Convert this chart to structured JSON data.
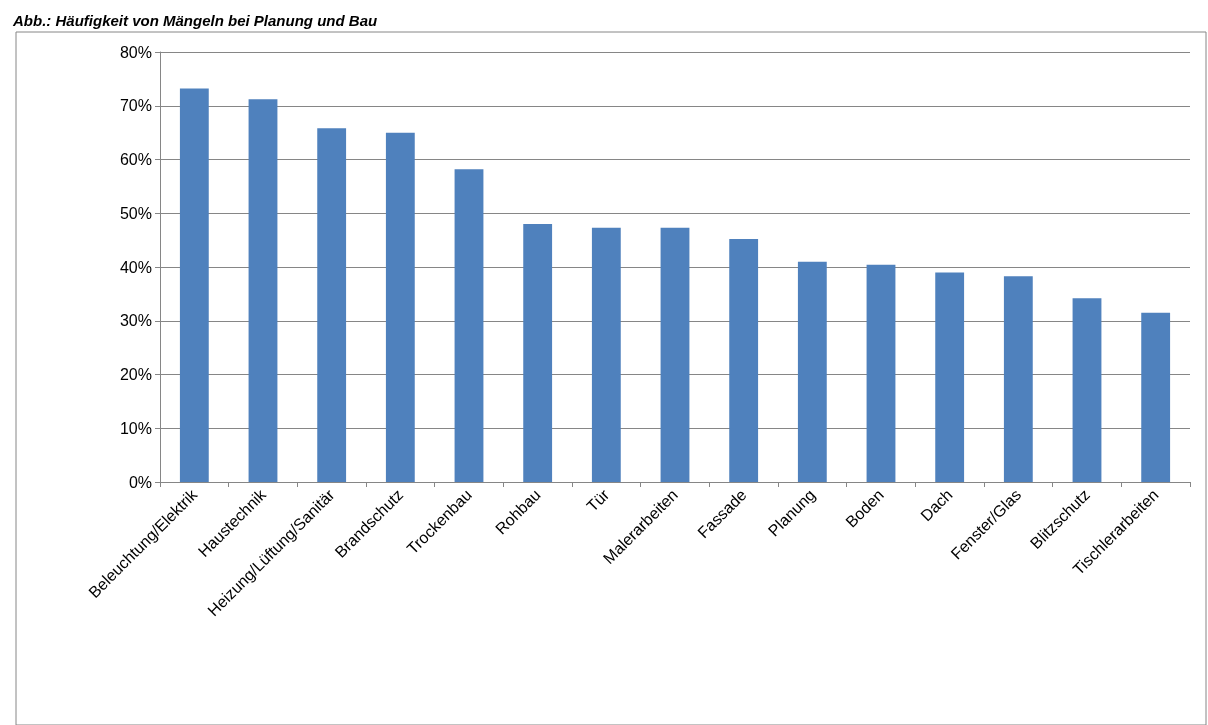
{
  "chart_data": {
    "type": "bar",
    "title": "Abb.: Häufigkeit von Mängeln bei Planung und Bau",
    "categories": [
      "Beleuchtung/Elektrik",
      "Haustechnik",
      "Heizung/Lüftung/Sanitär",
      "Brandschutz",
      "Trockenbau",
      "Rohbau",
      "Tür",
      "Malerarbeiten",
      "Fassade",
      "Planung",
      "Boden",
      "Dach",
      "Fenster/Glas",
      "Blitzschutz",
      "Tischlerarbeiten"
    ],
    "values": [
      73.2,
      71.2,
      65.8,
      65.0,
      58.2,
      48.0,
      47.3,
      47.3,
      45.2,
      41.0,
      40.4,
      39.0,
      38.3,
      34.2,
      31.5
    ],
    "color": "#4f81bd",
    "ylim": [
      0,
      80
    ],
    "yticks": [
      {
        "value": 0,
        "label": "0%"
      },
      {
        "value": 10,
        "label": "10%"
      },
      {
        "value": 20,
        "label": "20%"
      },
      {
        "value": 30,
        "label": "30%"
      },
      {
        "value": 40,
        "label": "40%"
      },
      {
        "value": 50,
        "label": "50%"
      },
      {
        "value": 60,
        "label": "60%"
      },
      {
        "value": 70,
        "label": "70%"
      },
      {
        "value": 80,
        "label": "80%"
      }
    ],
    "grid": "y"
  }
}
